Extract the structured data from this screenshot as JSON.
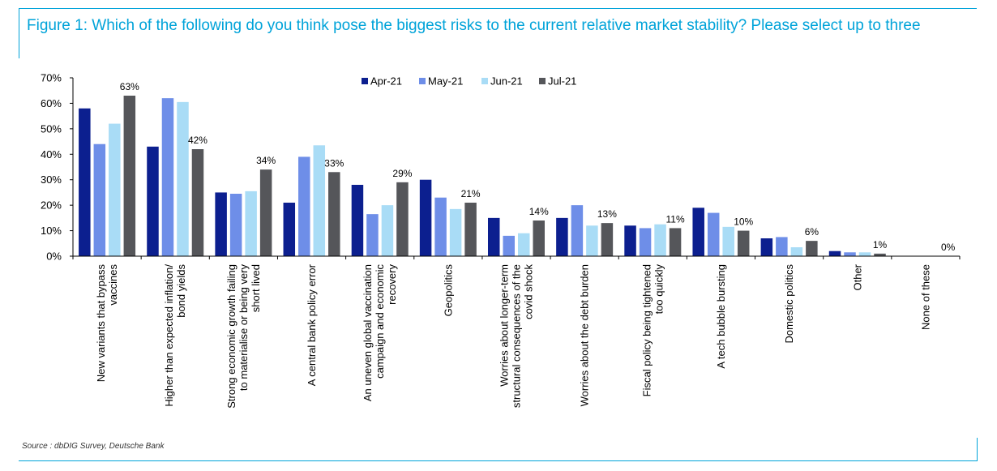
{
  "title": "Figure 1: Which of the following do you think pose the biggest risks to the current relative market stability? Please select up to three",
  "source": "Source : dbDIG Survey, Deutsche Bank",
  "chart_data": {
    "type": "bar",
    "title": "Figure 1: Which of the following do you think pose the biggest risks to the current relative market stability? Please select up to three",
    "xlabel": "",
    "ylabel": "",
    "ylim": [
      0,
      70
    ],
    "yticks": [
      0,
      10,
      20,
      30,
      40,
      50,
      60,
      70
    ],
    "ytick_labels": [
      "0%",
      "10%",
      "20%",
      "30%",
      "40%",
      "50%",
      "60%",
      "70%"
    ],
    "legend_position": "top-right",
    "categories": [
      [
        "New variants that bypass",
        "vaccines"
      ],
      [
        "Higher than expected inflation/",
        "bond yields"
      ],
      [
        "Strong economic growth failing",
        "to materialise or being very",
        "short lived"
      ],
      [
        "A central bank policy error"
      ],
      [
        "An uneven global vaccination",
        "campaign and economic",
        "recovery"
      ],
      [
        "Geopolitics"
      ],
      [
        "Worries about longer-term",
        "structural consequences of the",
        "covid shock"
      ],
      [
        "Worries about the debt burden"
      ],
      [
        "Fiscal policy being tightened",
        "too quickly"
      ],
      [
        "A tech bubble bursting"
      ],
      [
        "Domestic politics"
      ],
      [
        "Other"
      ],
      [
        "None of these"
      ]
    ],
    "series": [
      {
        "name": "Apr-21",
        "color": "#0c1f8f",
        "values": [
          58,
          43,
          25,
          21,
          28,
          30,
          15,
          15,
          12,
          19,
          7,
          2,
          0
        ]
      },
      {
        "name": "May-21",
        "color": "#6e8ee8",
        "values": [
          44,
          62,
          24.5,
          39,
          16.5,
          23,
          8,
          20,
          11,
          17,
          7.5,
          1.5,
          0
        ]
      },
      {
        "name": "Jun-21",
        "color": "#a9dcf6",
        "values": [
          52,
          60.5,
          25.5,
          43.5,
          20,
          18.5,
          9,
          12,
          12.5,
          11.5,
          3.5,
          1.5,
          0
        ]
      },
      {
        "name": "Jul-21",
        "color": "#55565a",
        "values": [
          63,
          42,
          34,
          33,
          29,
          21,
          14,
          13,
          11,
          10,
          6,
          1,
          0
        ]
      }
    ],
    "data_labels": {
      "series": "Jul-21",
      "labels": [
        "63%",
        "42%",
        "34%",
        "33%",
        "29%",
        "21%",
        "14%",
        "13%",
        "11%",
        "10%",
        "6%",
        "1%",
        "0%"
      ]
    }
  }
}
